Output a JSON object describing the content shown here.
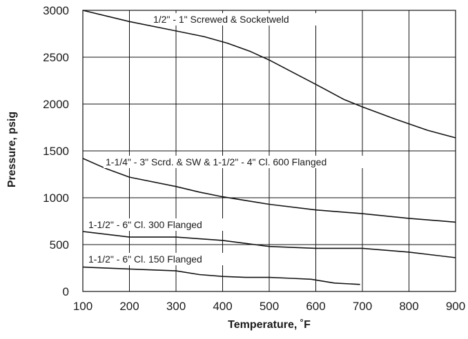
{
  "chart_data": {
    "type": "line",
    "title": "",
    "xlabel": "Temperature, ˚F",
    "ylabel": "Pressure, psig",
    "xlim": [
      100,
      900
    ],
    "ylim": [
      0,
      3000
    ],
    "x_ticks": [
      100,
      200,
      300,
      400,
      500,
      600,
      700,
      800,
      900
    ],
    "y_ticks": [
      0,
      500,
      1000,
      1500,
      2000,
      2500,
      3000
    ],
    "grid": true,
    "series": [
      {
        "name": "1/2\" - 1\" Screwed & Socketweld",
        "x": [
          100,
          200,
          300,
          360,
          410,
          460,
          500,
          550,
          600,
          660,
          700,
          770,
          840,
          900
        ],
        "y": [
          3000,
          2880,
          2780,
          2720,
          2650,
          2560,
          2470,
          2340,
          2210,
          2050,
          1970,
          1840,
          1720,
          1640
        ]
      },
      {
        "name": "1-1/4\" - 3\" Scrd. & SW & 1-1/2\" - 4\" Cl. 600 Flanged",
        "x": [
          100,
          150,
          200,
          300,
          350,
          400,
          450,
          500,
          600,
          700,
          800,
          900
        ],
        "y": [
          1420,
          1310,
          1220,
          1120,
          1060,
          1010,
          970,
          930,
          870,
          830,
          780,
          740
        ]
      },
      {
        "name": "1-1/2\" - 6\" Cl. 300 Flanged",
        "x": [
          100,
          200,
          300,
          400,
          500,
          600,
          700,
          800,
          900
        ],
        "y": [
          640,
          580,
          580,
          545,
          480,
          460,
          460,
          420,
          360
        ]
      },
      {
        "name": "1-1/2\" - 6\" Cl. 150 Flanged",
        "x": [
          100,
          200,
          300,
          350,
          400,
          450,
          500,
          550,
          590,
          640,
          695
        ],
        "y": [
          260,
          240,
          220,
          180,
          160,
          150,
          150,
          140,
          130,
          90,
          75
        ]
      }
    ]
  }
}
